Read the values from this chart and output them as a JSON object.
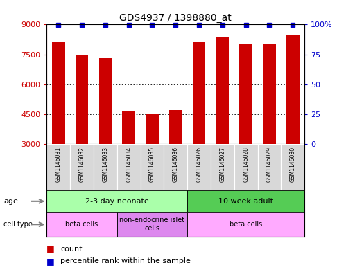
{
  "title": "GDS4937 / 1398880_at",
  "samples": [
    "GSM1146031",
    "GSM1146032",
    "GSM1146033",
    "GSM1146034",
    "GSM1146035",
    "GSM1146036",
    "GSM1146026",
    "GSM1146027",
    "GSM1146028",
    "GSM1146029",
    "GSM1146030"
  ],
  "counts": [
    8100,
    7500,
    7300,
    4650,
    4550,
    4700,
    8100,
    8400,
    8000,
    8000,
    8500
  ],
  "ylim_left": [
    3000,
    9000
  ],
  "ylim_right": [
    0,
    100
  ],
  "yticks_left": [
    3000,
    4500,
    6000,
    7500,
    9000
  ],
  "yticks_right": [
    0,
    25,
    50,
    75,
    100
  ],
  "bar_color": "#cc0000",
  "marker_color": "#0000cc",
  "age_groups": [
    {
      "label": "2-3 day neonate",
      "start": 0,
      "end": 5,
      "color": "#aaffaa"
    },
    {
      "label": "10 week adult",
      "start": 6,
      "end": 10,
      "color": "#55cc55"
    }
  ],
  "cell_type_groups": [
    {
      "label": "beta cells",
      "start": 0,
      "end": 2,
      "color": "#ffaaff"
    },
    {
      "label": "non-endocrine islet\ncells",
      "start": 3,
      "end": 5,
      "color": "#dd88dd"
    },
    {
      "label": "beta cells",
      "start": 6,
      "end": 10,
      "color": "#ffaaff"
    }
  ],
  "legend_count_color": "#cc0000",
  "legend_rank_color": "#0000cc",
  "grid_color": "#000000",
  "title_fontsize": 10,
  "bar_width": 0.55,
  "sample_label_fontsize": 5.5,
  "annotation_fontsize": 8,
  "legend_fontsize": 8
}
